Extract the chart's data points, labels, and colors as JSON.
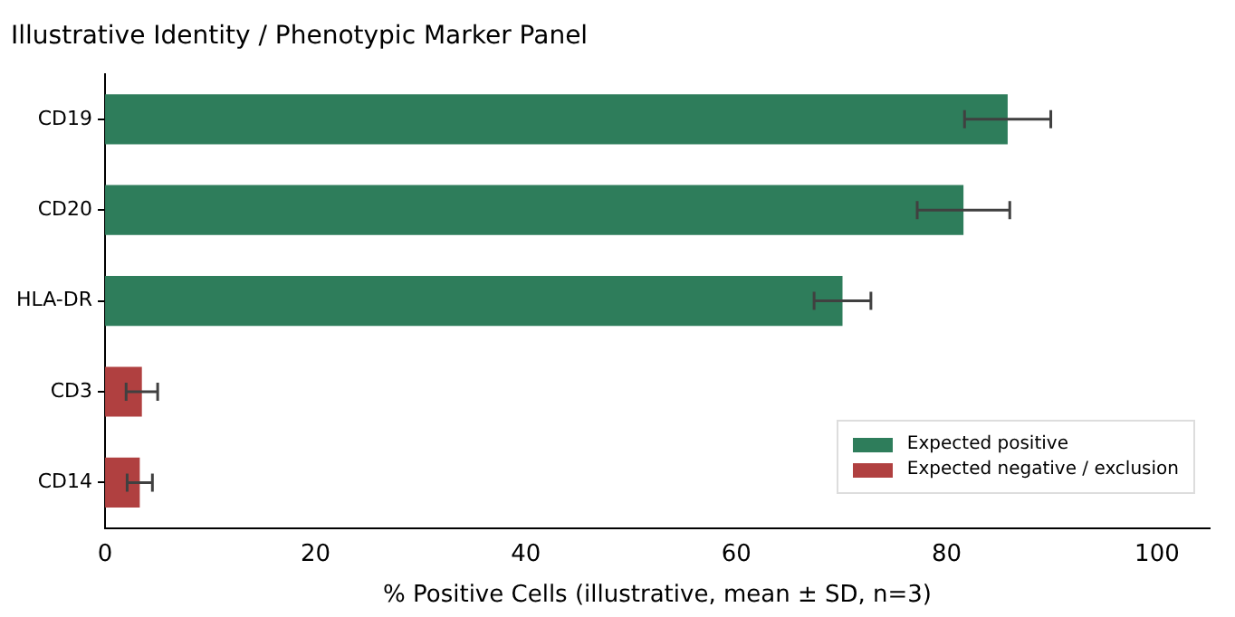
{
  "chart_data": {
    "type": "bar",
    "orientation": "horizontal",
    "title": "Illustrative Identity / Phenotypic Marker Panel",
    "xlabel": "% Positive Cells (illustrative, mean ± SD, n=3)",
    "categories": [
      "CD19",
      "CD20",
      "HLA-DR",
      "CD3",
      "CD14"
    ],
    "series": [
      {
        "name": "Expected positive",
        "color": "#2e7d5b",
        "values": [
          85.8,
          81.6,
          70.1,
          null,
          null
        ],
        "errors": [
          4.1,
          4.4,
          2.7,
          null,
          null
        ]
      },
      {
        "name": "Expected negative / exclusion",
        "color": "#b04040",
        "values": [
          null,
          null,
          null,
          3.5,
          3.3
        ],
        "errors": [
          null,
          null,
          null,
          1.5,
          1.2
        ]
      }
    ],
    "xlim": [
      0,
      105
    ],
    "xticks": [
      0,
      20,
      40,
      60,
      80,
      100
    ],
    "grid": false,
    "legend": "bottom right"
  }
}
